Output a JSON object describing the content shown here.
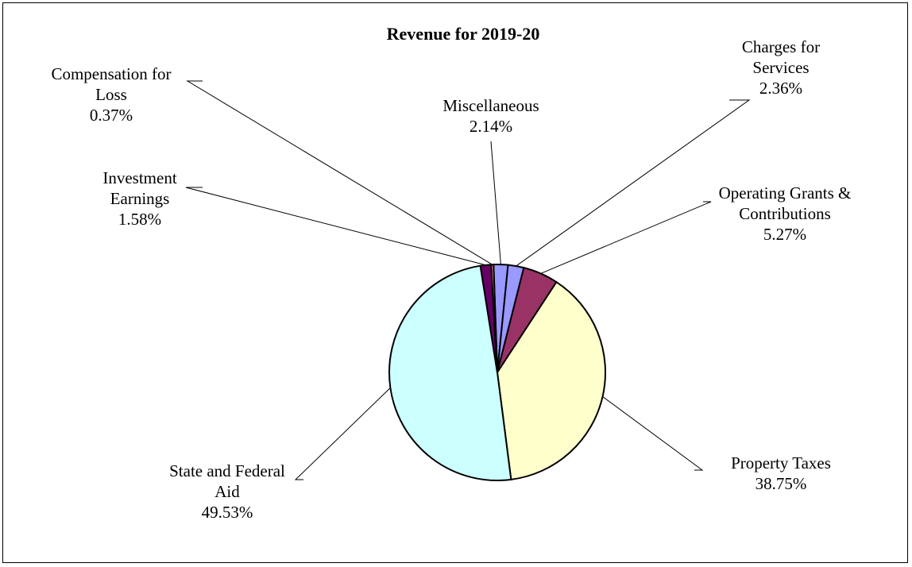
{
  "chart_data": {
    "type": "pie",
    "title": "Revenue for 2019-20",
    "slices": [
      {
        "label_lines": [
          "Miscellaneous"
        ],
        "percent_text": "2.14%",
        "value": 2.14,
        "color": "#9999FF"
      },
      {
        "label_lines": [
          "Charges for",
          "Services"
        ],
        "percent_text": "2.36%",
        "value": 2.36,
        "color": "#9999FF"
      },
      {
        "label_lines": [
          "Operating Grants &",
          "Contributions"
        ],
        "percent_text": "5.27%",
        "value": 5.27,
        "color": "#993366"
      },
      {
        "label_lines": [
          "Property Taxes"
        ],
        "percent_text": "38.75%",
        "value": 38.75,
        "color": "#FFFFCC"
      },
      {
        "label_lines": [
          "State and Federal",
          "Aid"
        ],
        "percent_text": "49.53%",
        "value": 49.53,
        "color": "#CCFFFF"
      },
      {
        "label_lines": [
          "Investment",
          "Earnings"
        ],
        "percent_text": "1.58%",
        "value": 1.58,
        "color": "#660066"
      },
      {
        "label_lines": [
          "Compensation for",
          "Loss"
        ],
        "percent_text": "0.37%",
        "value": 0.37,
        "color": "#FF8080"
      }
    ],
    "legend": "none"
  }
}
